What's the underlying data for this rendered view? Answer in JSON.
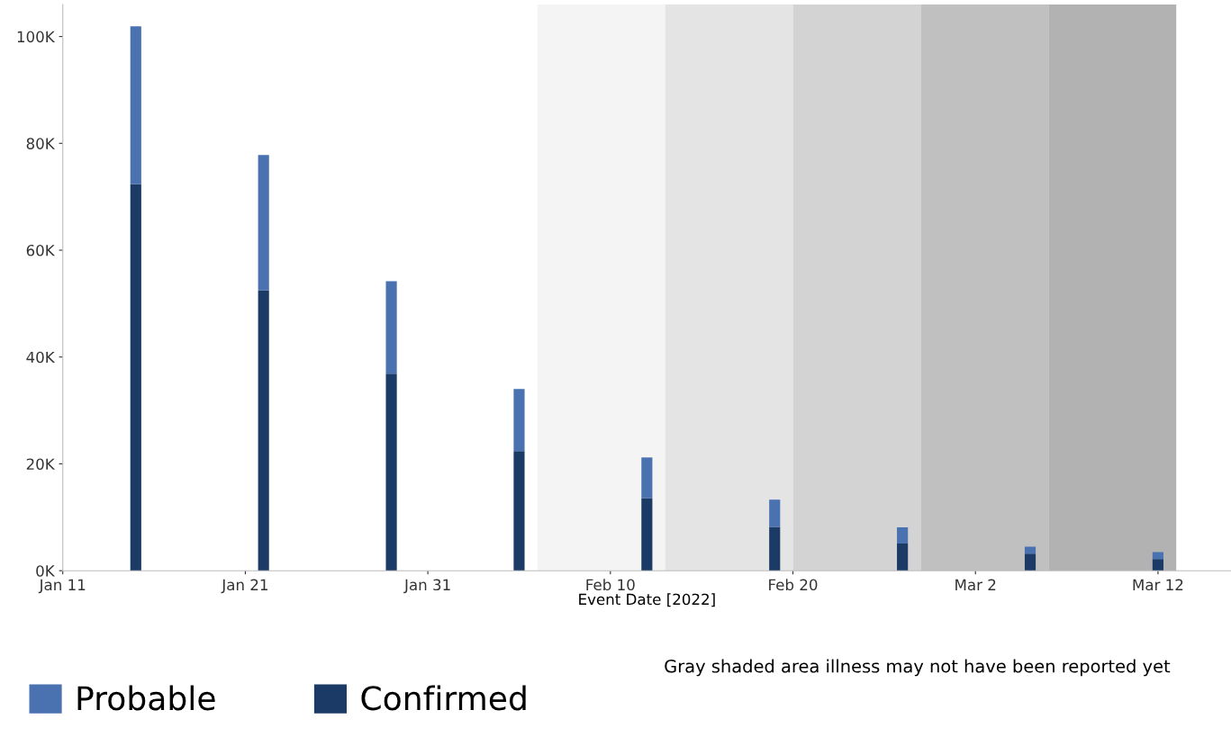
{
  "chart_data": {
    "type": "bar",
    "stacked": true,
    "xlabel": "Event Date [2022]",
    "x": [
      "2022-01-15",
      "2022-01-22",
      "2022-01-29",
      "2022-02-05",
      "2022-02-12",
      "2022-02-19",
      "2022-02-26",
      "2022-03-05",
      "2022-03-12"
    ],
    "series": [
      {
        "name": "Confirmed",
        "color": "#1b3a66",
        "values": [
          72400,
          52500,
          36900,
          22400,
          13600,
          8200,
          5100,
          3200,
          2200
        ]
      },
      {
        "name": "Probable",
        "color": "#4a72b0",
        "values": [
          29500,
          25300,
          17300,
          11600,
          7600,
          5100,
          3000,
          1300,
          1300
        ]
      }
    ],
    "xlim": [
      "2022-01-11",
      "2022-03-16"
    ],
    "xticks": [
      {
        "value": "2022-01-11",
        "label": "Jan 11"
      },
      {
        "value": "2022-01-21",
        "label": "Jan 21"
      },
      {
        "value": "2022-01-31",
        "label": "Jan 31"
      },
      {
        "value": "2022-02-10",
        "label": "Feb 10"
      },
      {
        "value": "2022-02-20",
        "label": "Feb 20"
      },
      {
        "value": "2022-03-02",
        "label": "Mar 2"
      },
      {
        "value": "2022-03-12",
        "label": "Mar 12"
      }
    ],
    "ylim": [
      0,
      106000
    ],
    "yticks": [
      {
        "value": 0,
        "label": "0K"
      },
      {
        "value": 20000,
        "label": "20K"
      },
      {
        "value": 40000,
        "label": "40K"
      },
      {
        "value": 60000,
        "label": "60K"
      },
      {
        "value": 80000,
        "label": "80K"
      },
      {
        "value": 100000,
        "label": "100K"
      }
    ],
    "bands": [
      {
        "axis": "x",
        "from": "2022-02-06",
        "to": "2022-02-13",
        "color": "#f4f4f4"
      },
      {
        "axis": "x",
        "from": "2022-02-13",
        "to": "2022-02-20",
        "color": "#e4e4e4"
      },
      {
        "axis": "x",
        "from": "2022-02-20",
        "to": "2022-02-27",
        "color": "#d3d3d3"
      },
      {
        "axis": "x",
        "from": "2022-02-27",
        "to": "2022-03-06",
        "color": "#c0c0c0"
      },
      {
        "axis": "x",
        "from": "2022-03-06",
        "to": "2022-03-13",
        "color": "#b2b2b2"
      }
    ],
    "annotations": [
      "Gray shaded area illness may not have been reported yet"
    ],
    "legend": "bottom left",
    "grid": false
  }
}
